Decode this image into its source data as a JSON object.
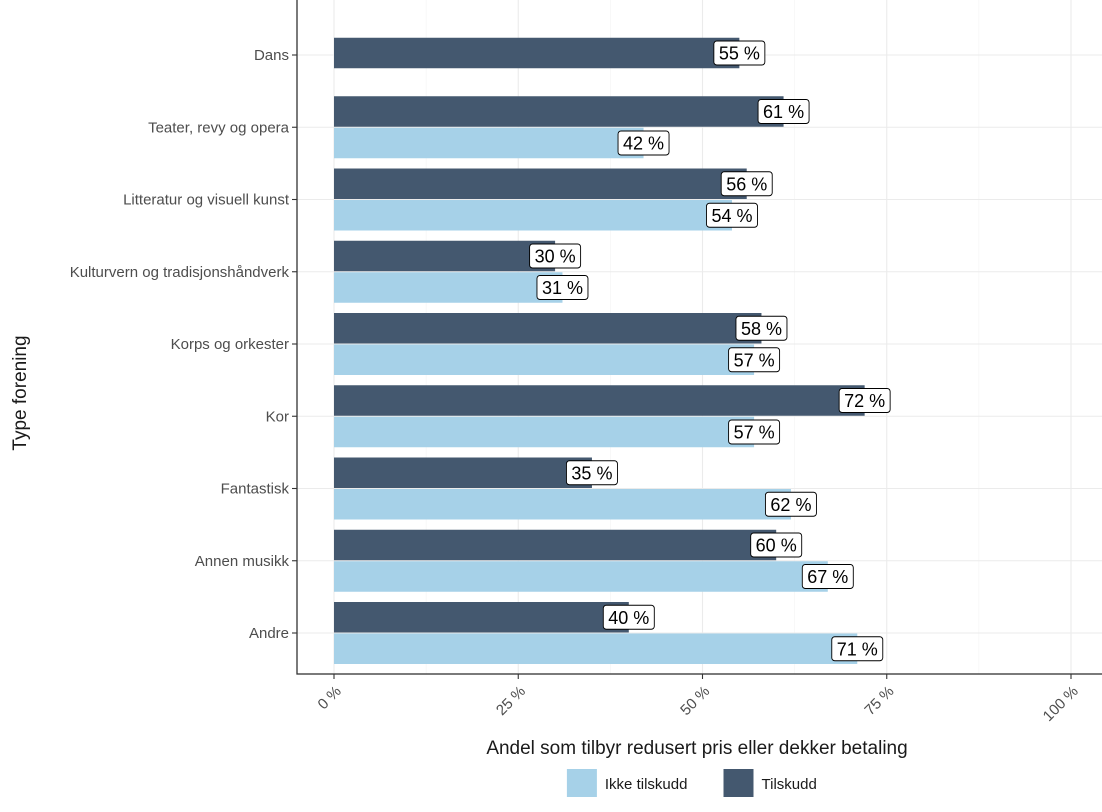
{
  "chart_data": {
    "type": "bar",
    "orientation": "horizontal",
    "categories": [
      "Dans",
      "Teater, revy og opera",
      "Litteratur og visuell kunst",
      "Kulturvern og tradisjonshåndverk",
      "Korps og orkester",
      "Kor",
      "Fantastisk",
      "Annen musikk",
      "Andre"
    ],
    "series": [
      {
        "name": "Tilskudd",
        "color": "#44586f",
        "values": [
          55,
          61,
          56,
          30,
          58,
          72,
          35,
          60,
          40
        ],
        "labels": [
          "55 %",
          "61 %",
          "56 %",
          "30 %",
          "58 %",
          "72 %",
          "35 %",
          "60 %",
          "40 %"
        ]
      },
      {
        "name": "Ikke tilskudd",
        "color": "#a6d1e8",
        "values": [
          null,
          42,
          54,
          31,
          57,
          57,
          62,
          67,
          71
        ],
        "labels": [
          "",
          "42 %",
          "54 %",
          "31 %",
          "57 %",
          "57 %",
          "62 %",
          "67 %",
          "71 %"
        ]
      }
    ],
    "xlabel": "Andel som tilbyr redusert pris eller dekker betaling",
    "ylabel": "Type forening",
    "xlim": [
      0,
      100
    ],
    "x_ticks": [
      0,
      25,
      50,
      75,
      100
    ],
    "x_tick_labels": [
      "0 %",
      "25 %",
      "50 %",
      "75 %",
      "100 %"
    ],
    "grid": true,
    "legend_position": "bottom",
    "legend": [
      {
        "name": "Ikke tilskudd",
        "color": "#a6d1e8"
      },
      {
        "name": "Tilskudd",
        "color": "#44586f"
      }
    ]
  }
}
